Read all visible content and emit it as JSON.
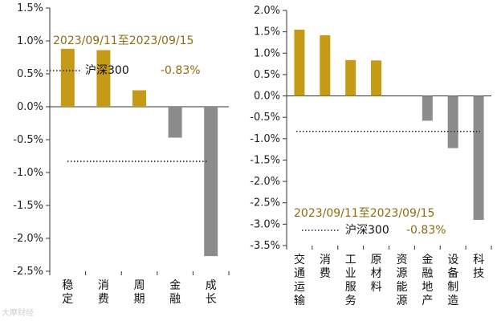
{
  "colors": {
    "positive": "#C49A16",
    "negative": "#8C8C8C",
    "date_text": "#8C6D0E",
    "value_text": "#8C6D0E",
    "axis": "#333333",
    "text": "#111111"
  },
  "watermark": "大摩财经",
  "chart_data": [
    {
      "type": "bar",
      "categories": [
        "稳定",
        "消费",
        "周期",
        "金融",
        "成长"
      ],
      "values": [
        0.88,
        0.86,
        0.25,
        -0.47,
        -2.27
      ],
      "reference_line": {
        "label": "沪深300",
        "value": -0.83,
        "value_text": "-0.83%"
      },
      "annotation_date": "2023/09/11至2023/09/15",
      "ylim": [
        -2.5,
        1.5
      ],
      "yticks": [
        "1.5%",
        "1.0%",
        "0.5%",
        "0.0%",
        "-0.5%",
        "-1.0%",
        "-1.5%",
        "-2.0%",
        "-2.5%"
      ],
      "ytick_values": [
        1.5,
        1.0,
        0.5,
        0.0,
        -0.5,
        -1.0,
        -1.5,
        -2.0,
        -2.5
      ],
      "grid": false
    },
    {
      "type": "bar",
      "categories": [
        "交通运输",
        "消费",
        "工业服务",
        "原材料",
        "资源能源",
        "金融地产",
        "设备制造",
        "科技"
      ],
      "values": [
        1.55,
        1.42,
        0.84,
        0.83,
        0.0,
        -0.58,
        -1.22,
        -2.9
      ],
      "reference_line": {
        "label": "沪深300",
        "value": -0.83,
        "value_text": "-0.83%"
      },
      "annotation_date": "2023/09/11至2023/09/15",
      "ylim": [
        -3.5,
        2.0
      ],
      "yticks": [
        "2.0%",
        "1.5%",
        "1.0%",
        "0.5%",
        "0.0%",
        "-0.5%",
        "-1.0%",
        "-1.5%",
        "-2.0%",
        "-2.5%",
        "-3.0%",
        "-3.5%"
      ],
      "ytick_values": [
        2.0,
        1.5,
        1.0,
        0.5,
        0.0,
        -0.5,
        -1.0,
        -1.5,
        -2.0,
        -2.5,
        -3.0,
        -3.5
      ],
      "grid": false
    }
  ]
}
